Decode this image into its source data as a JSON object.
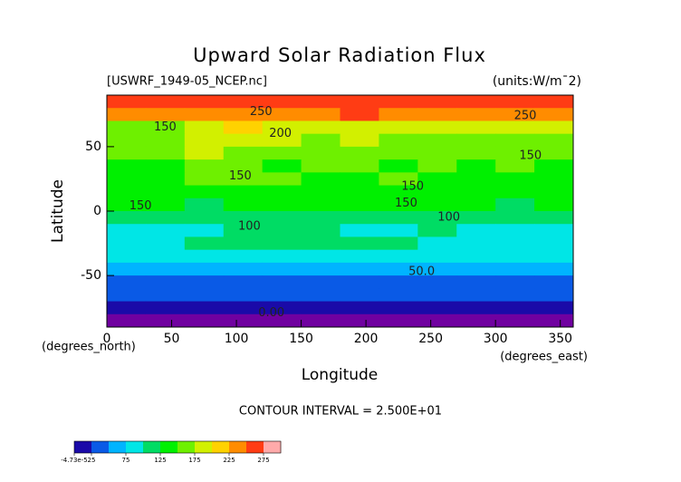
{
  "chart_data": {
    "type": "contour",
    "title": "Upward Solar Radiation Flux",
    "subtitle": "[USWRF_1949-05_NCEP.nc]",
    "units": "(units:W/m¯2)",
    "x_label": "Longitude",
    "y_label": "Latitude",
    "x_unit_label": "(degrees_east)",
    "y_unit_label": "(degrees_north)",
    "contour_interval": "CONTOUR INTERVAL = 2.500E+01",
    "xlim": [
      0,
      360
    ],
    "ylim": [
      -90,
      90
    ],
    "xticks": [
      0,
      50,
      100,
      150,
      200,
      250,
      300,
      350
    ],
    "yticks": [
      -50,
      0,
      50
    ],
    "x": [
      15,
      45,
      75,
      105,
      135,
      165,
      195,
      225,
      255,
      285,
      315,
      345
    ],
    "y": [
      85,
      75,
      65,
      55,
      45,
      35,
      25,
      15,
      5,
      -5,
      -15,
      -25,
      -35,
      -45,
      -55,
      -65,
      -75,
      -85
    ],
    "z": [
      [
        270,
        265,
        260,
        255,
        255,
        260,
        270,
        270,
        265,
        255,
        260,
        265
      ],
      [
        240,
        230,
        235,
        240,
        245,
        245,
        250,
        245,
        240,
        235,
        245,
        240
      ],
      [
        170,
        165,
        180,
        200,
        195,
        190,
        185,
        180,
        175,
        185,
        190,
        180
      ],
      [
        160,
        165,
        175,
        185,
        180,
        170,
        175,
        165,
        160,
        170,
        165,
        160
      ],
      [
        150,
        160,
        190,
        160,
        150,
        155,
        170,
        150,
        155,
        160,
        150,
        150
      ],
      [
        145,
        140,
        165,
        170,
        145,
        150,
        160,
        145,
        150,
        145,
        150,
        140
      ],
      [
        140,
        145,
        150,
        155,
        150,
        145,
        140,
        150,
        145,
        135,
        145,
        140
      ],
      [
        140,
        135,
        130,
        140,
        145,
        140,
        145,
        140,
        135,
        130,
        140,
        145
      ],
      [
        125,
        130,
        120,
        125,
        130,
        130,
        135,
        125,
        130,
        125,
        120,
        125
      ],
      [
        100,
        105,
        110,
        110,
        115,
        110,
        115,
        105,
        110,
        100,
        105,
        100
      ],
      [
        85,
        90,
        95,
        100,
        105,
        100,
        95,
        90,
        100,
        95,
        90,
        85
      ],
      [
        90,
        95,
        100,
        105,
        105,
        110,
        105,
        100,
        95,
        95,
        90,
        95
      ],
      [
        80,
        85,
        85,
        90,
        85,
        80,
        80,
        85,
        90,
        85,
        80,
        85
      ],
      [
        60,
        65,
        65,
        70,
        65,
        60,
        65,
        60,
        60,
        65,
        60,
        60
      ],
      [
        40,
        40,
        40,
        40,
        40,
        40,
        40,
        40,
        40,
        40,
        40,
        40
      ],
      [
        30,
        30,
        30,
        30,
        30,
        30,
        30,
        30,
        30,
        30,
        30,
        30
      ],
      [
        15,
        15,
        15,
        15,
        15,
        15,
        15,
        15,
        15,
        15,
        15,
        15
      ],
      [
        0,
        0,
        0,
        0,
        0,
        0,
        0,
        0,
        0,
        0,
        0,
        0
      ]
    ],
    "levels": [
      0,
      25,
      50,
      75,
      100,
      125,
      150,
      175,
      200,
      225,
      250,
      275,
      300
    ],
    "colors": [
      "#1a0aa8",
      "#0a5ae6",
      "#00b4ff",
      "#00e6e6",
      "#00dc64",
      "#00f000",
      "#6ef000",
      "#d2f000",
      "#ffd200",
      "#ff8c00",
      "#ff3c14",
      "#ffaaaa"
    ],
    "below_color": "#7000a0",
    "colorbar_ticks": [
      {
        "value": -4.73e-05,
        "label": "-4.73e-5"
      },
      25,
      75,
      125,
      175,
      225,
      275
    ],
    "annotations": [
      {
        "text": "250",
        "lon": 119,
        "lat": 77
      },
      {
        "text": "150",
        "lon": 45,
        "lat": 65
      },
      {
        "text": "200",
        "lon": 134,
        "lat": 60
      },
      {
        "text": "250",
        "lon": 323,
        "lat": 74
      },
      {
        "text": "150",
        "lon": 327,
        "lat": 43
      },
      {
        "text": "150",
        "lon": 103,
        "lat": 27
      },
      {
        "text": "150",
        "lon": 26,
        "lat": 4
      },
      {
        "text": "150",
        "lon": 236,
        "lat": 19
      },
      {
        "text": "150",
        "lon": 231,
        "lat": 6
      },
      {
        "text": "100",
        "lon": 110,
        "lat": -12
      },
      {
        "text": "100",
        "lon": 264,
        "lat": -5
      },
      {
        "text": "50.0",
        "lon": 243,
        "lat": -47
      },
      {
        "text": "0.00",
        "lon": 127,
        "lat": -79
      }
    ]
  }
}
